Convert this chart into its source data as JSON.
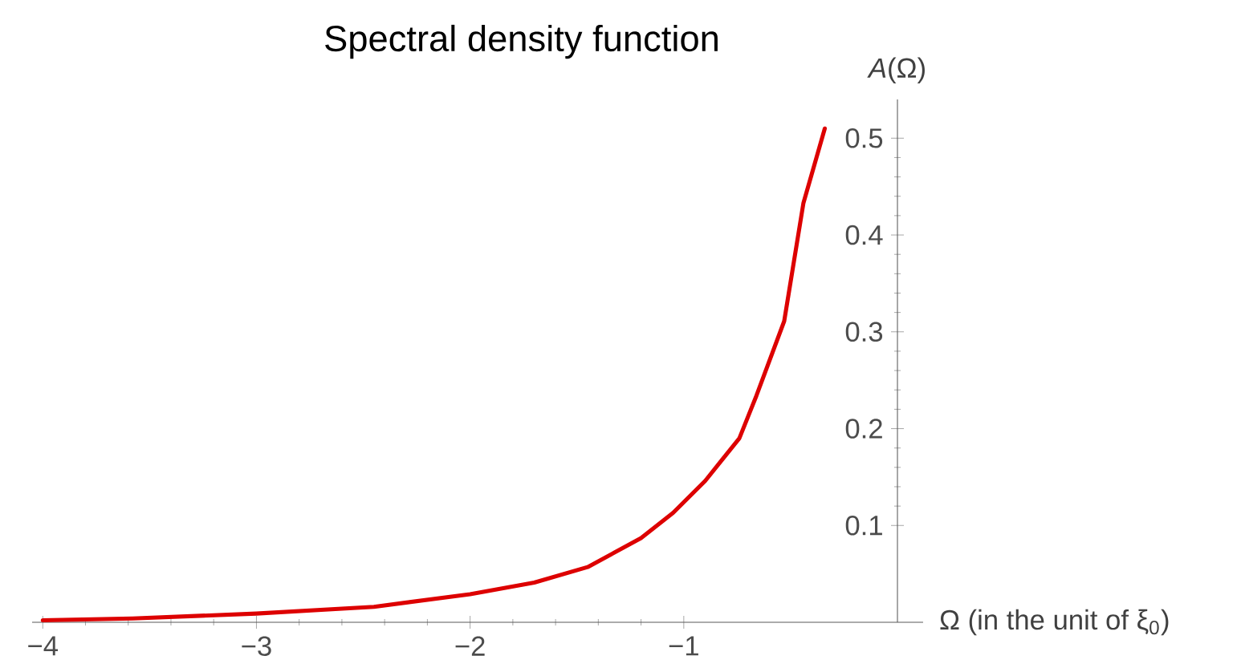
{
  "chart_data": {
    "type": "line",
    "title": "Spectral density function",
    "xlabel": "Ω (in the  unit of ξ$_{0}$)",
    "ylabel": "*A*(Ω)",
    "x": [
      -4.0,
      -3.58,
      -3.0,
      -2.45,
      -2.0,
      -1.7,
      -1.45,
      -1.2,
      -1.05,
      -0.9,
      -0.82,
      -0.74,
      -0.66,
      -0.53,
      -0.44,
      -0.34
    ],
    "series": [
      {
        "color": "#dd0000",
        "values": [
          0.002,
          0.004,
          0.009,
          0.016,
          0.029,
          0.041,
          0.057,
          0.087,
          0.113,
          0.146,
          0.168,
          0.19,
          0.234,
          0.311,
          0.433,
          0.51
        ]
      }
    ],
    "xlim": [
      -4.05,
      0.12
    ],
    "ylim": [
      0,
      0.54
    ],
    "xticks": [
      {
        "value": -4,
        "label": "−4"
      },
      {
        "value": -3,
        "label": "−3"
      },
      {
        "value": -2,
        "label": "−2"
      },
      {
        "value": -1,
        "label": "−1"
      }
    ],
    "yticks": [
      0.1,
      0.2,
      0.3,
      0.4,
      0.5
    ]
  }
}
